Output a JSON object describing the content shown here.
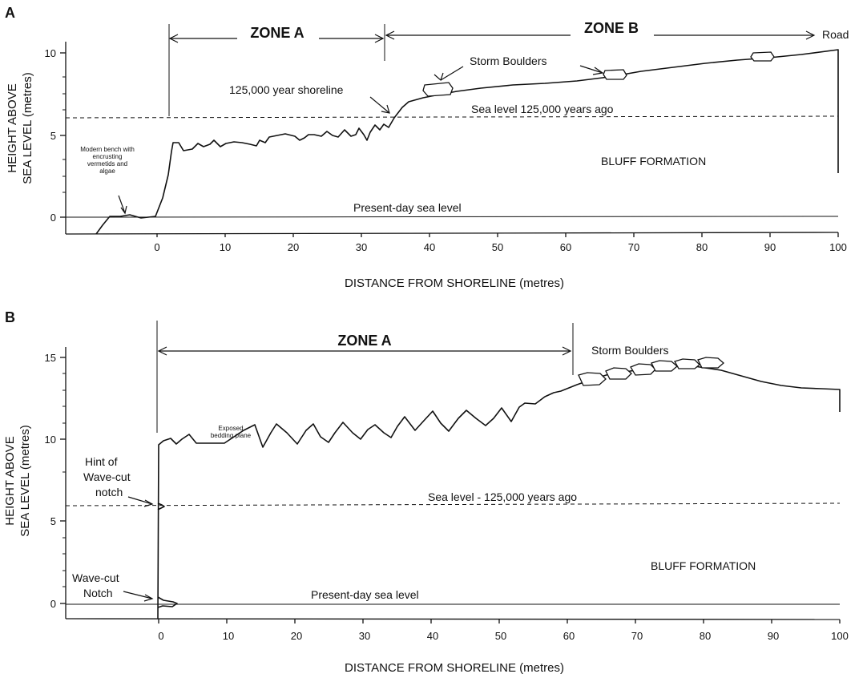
{
  "panel_a": {
    "label": "A",
    "y_label_line1": "HEIGHT ABOVE",
    "y_label_line2": "SEA LEVEL (metres)",
    "x_label": "DISTANCE FROM SHORELINE (metres)",
    "y_ticks": [
      "10",
      "5",
      "0"
    ],
    "x_ticks": [
      "0",
      "10",
      "20",
      "30",
      "40",
      "50",
      "60",
      "70",
      "80",
      "90",
      "100"
    ],
    "zone_a": "ZONE A",
    "zone_b": "ZONE B",
    "road": "Road",
    "storm_boulders": "Storm Boulders",
    "shoreline_125k": "125,000 year shoreline",
    "sea_level_125k": "Sea level  125,000 years ago",
    "bluff_formation": "BLUFF FORMATION",
    "present_sea_level": "Present-day sea level",
    "modern_bench": [
      "Modern bench with",
      "encrusting",
      "vermetids and",
      "algae"
    ]
  },
  "panel_b": {
    "label": "B",
    "y_label_line1": "HEIGHT ABOVE",
    "y_label_line2": "SEA LEVEL (metres)",
    "x_label": "DISTANCE FROM SHORELINE (metres)",
    "y_ticks": [
      "15",
      "10",
      "5",
      "0"
    ],
    "x_ticks": [
      "0",
      "10",
      "20",
      "30",
      "40",
      "50",
      "60",
      "70",
      "80",
      "90",
      "100"
    ],
    "zone_a": "ZONE A",
    "storm_boulders": "Storm Boulders",
    "exposed_bedding": [
      "Exposed",
      "bedding plane"
    ],
    "hint_notch": [
      "Hint of",
      "Wave-cut",
      "notch"
    ],
    "wave_cut_notch": [
      "Wave-cut",
      "Notch"
    ],
    "sea_level_125k": "Sea level - 125,000 years ago",
    "bluff_formation": "BLUFF FORMATION",
    "present_sea_level": "Present-day sea level"
  }
}
